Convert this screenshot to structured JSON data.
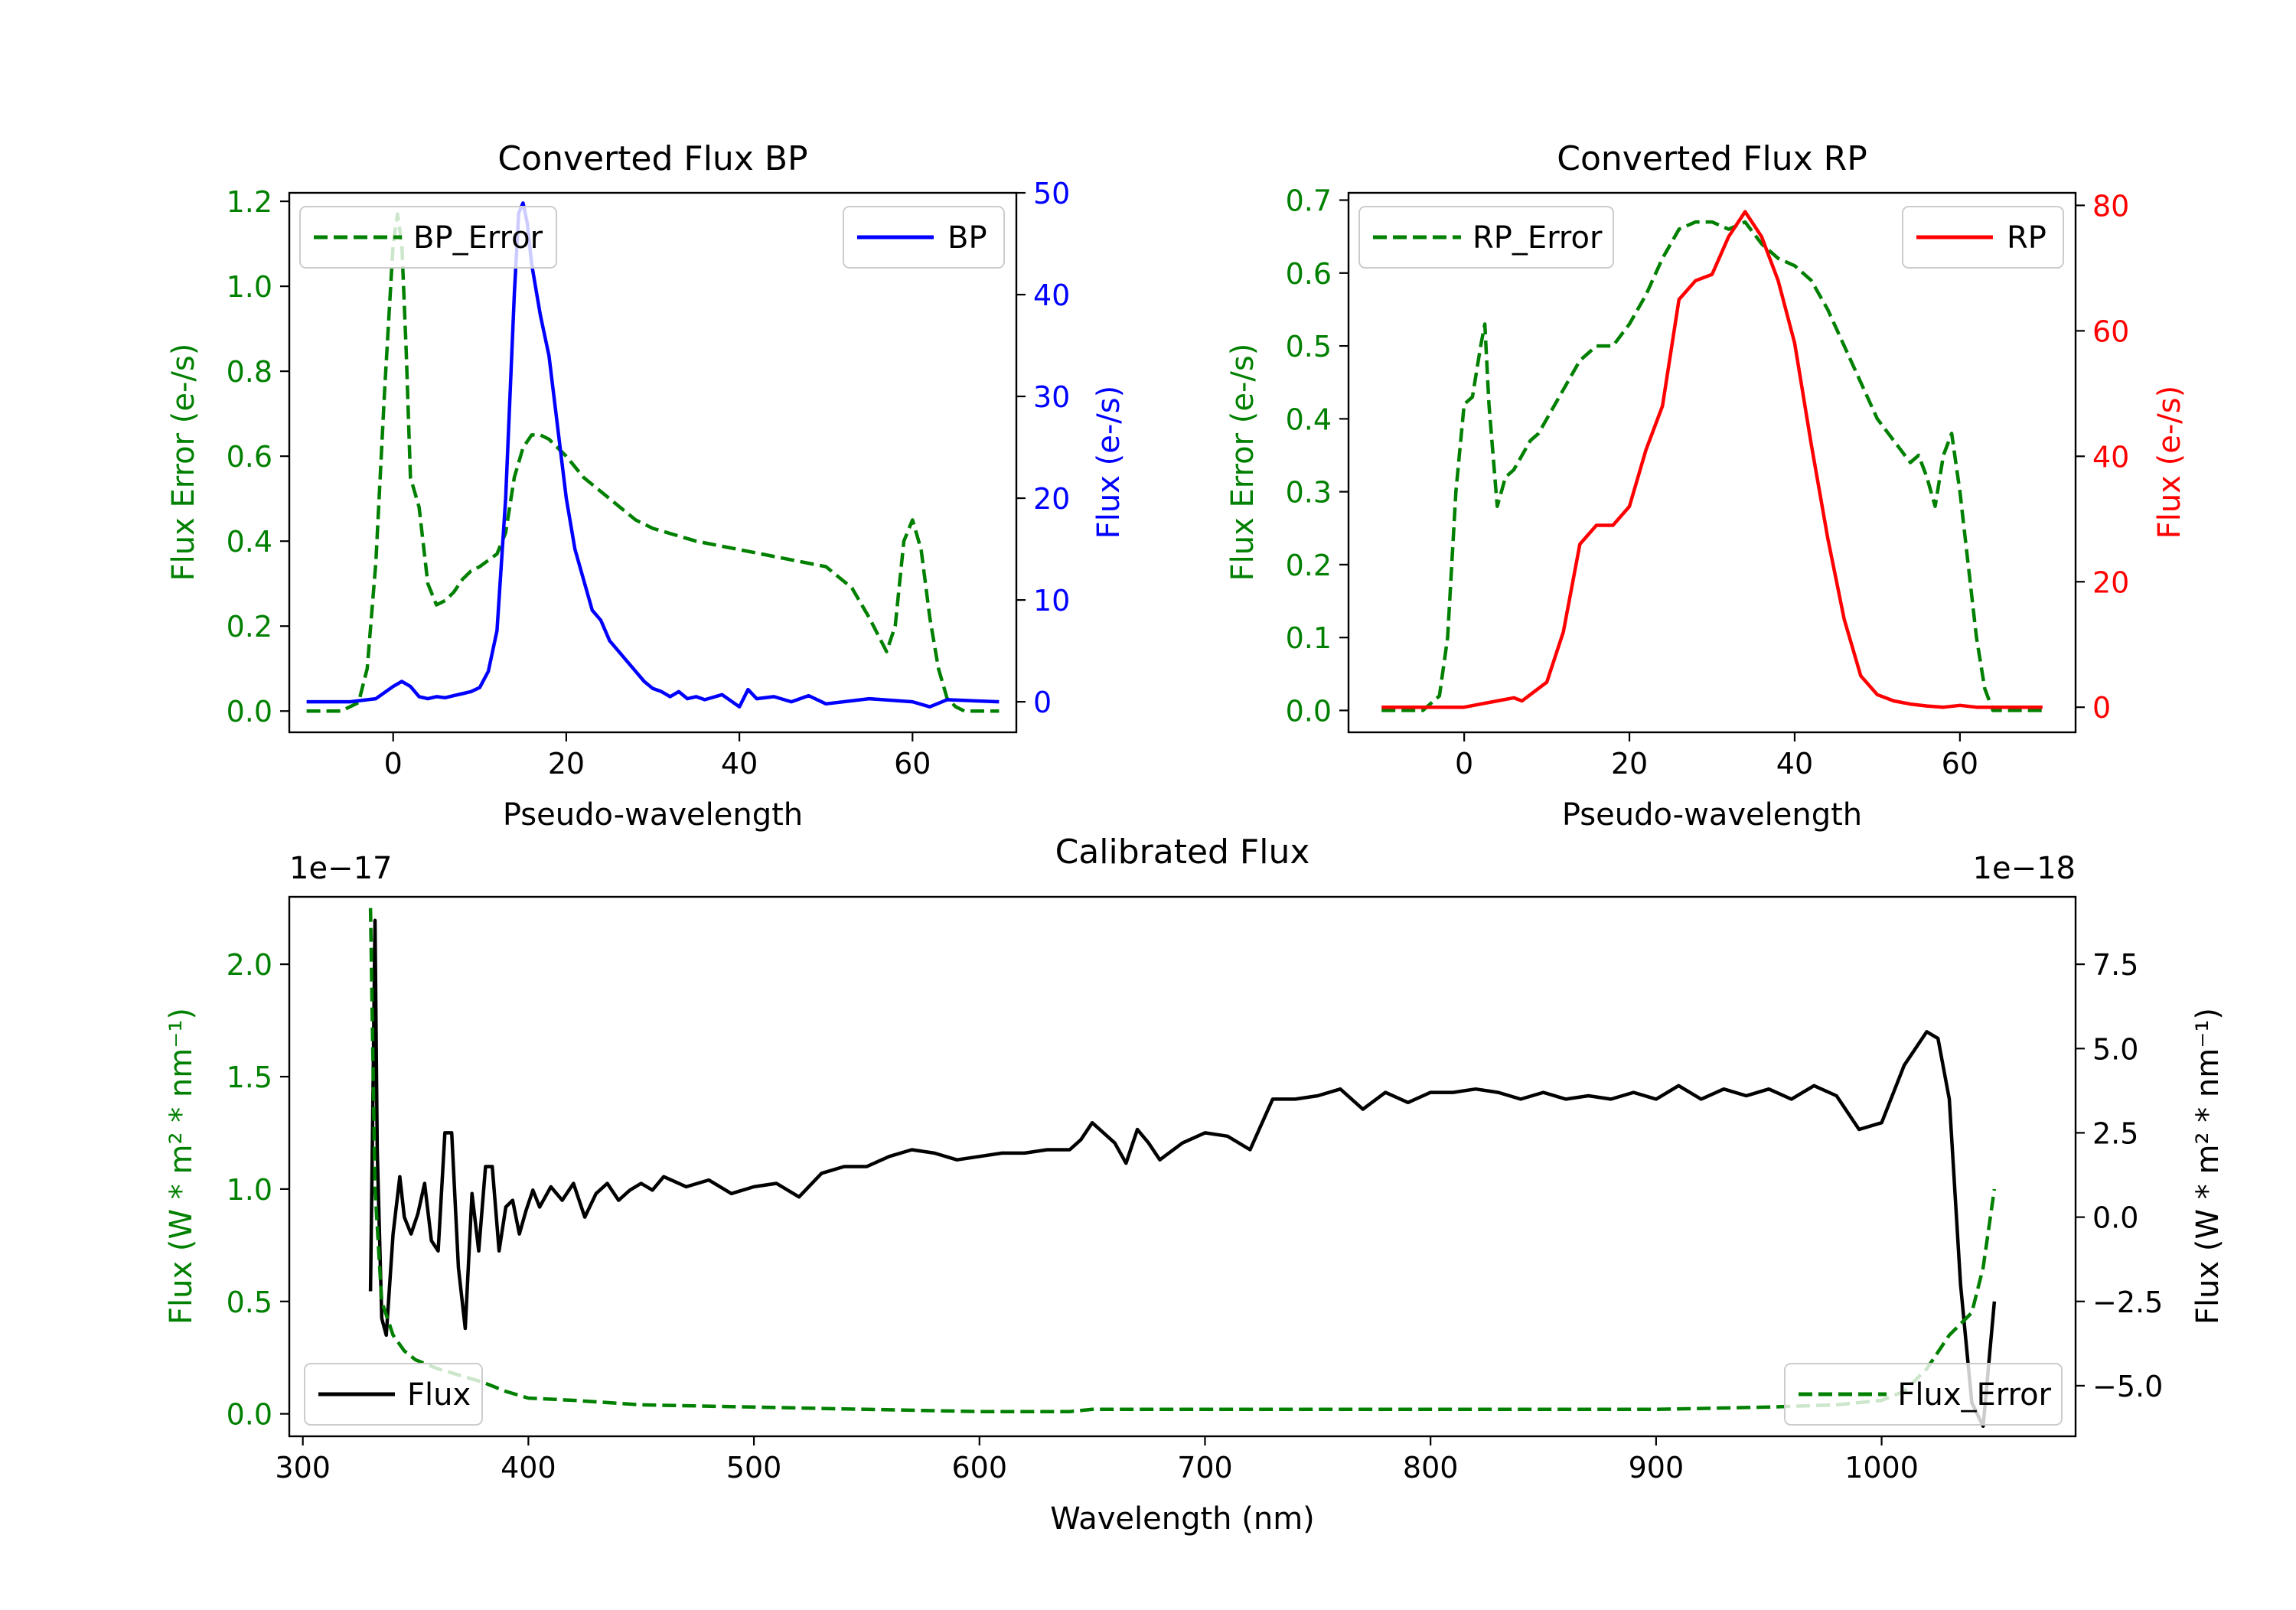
{
  "colors": {
    "error": "#008000",
    "bp": "#0000ff",
    "rp": "#ff0000",
    "flux": "#000000"
  },
  "chart_data": [
    {
      "id": "bp",
      "type": "line",
      "title": "Converted Flux BP",
      "xlabel": "Pseudo-wavelength",
      "xlim": [
        -12,
        72
      ],
      "xticks": [
        0,
        20,
        40,
        60
      ],
      "xtick_labels": [
        "0",
        "20",
        "40",
        "60"
      ],
      "left_axis": {
        "label": "Flux Error (e-/s)",
        "color": "#008000",
        "ylim": [
          -0.05,
          1.22
        ],
        "ticks": [
          0.0,
          0.2,
          0.4,
          0.6,
          0.8,
          1.0,
          1.2
        ],
        "tick_labels": [
          "0.0",
          "0.2",
          "0.4",
          "0.6",
          "0.8",
          "1.0",
          "1.2"
        ]
      },
      "right_axis": {
        "label": "Flux (e-/s)",
        "color": "#0000ff",
        "ylim": [
          -3,
          50
        ],
        "ticks": [
          0,
          10,
          20,
          30,
          40,
          50
        ],
        "tick_labels": [
          "0",
          "10",
          "20",
          "30",
          "40",
          "50"
        ]
      },
      "series": [
        {
          "name": "BP_Error",
          "axis": "left",
          "style": "dashed",
          "color": "#008000",
          "x": [
            -10,
            -6,
            -4,
            -3,
            -2,
            -1,
            0,
            0.5,
            1,
            1.5,
            2,
            3,
            4,
            5,
            6,
            7,
            8,
            9,
            10,
            12,
            13,
            14,
            15,
            16,
            17,
            18,
            19,
            20,
            22,
            25,
            28,
            30,
            35,
            40,
            45,
            50,
            53,
            55,
            57,
            58,
            59,
            60,
            61,
            62,
            63,
            64,
            65,
            66,
            68,
            70
          ],
          "y": [
            0.0,
            0.0,
            0.02,
            0.1,
            0.35,
            0.75,
            1.1,
            1.17,
            1.1,
            0.85,
            0.55,
            0.48,
            0.3,
            0.25,
            0.26,
            0.28,
            0.31,
            0.33,
            0.34,
            0.37,
            0.42,
            0.55,
            0.62,
            0.65,
            0.65,
            0.64,
            0.62,
            0.6,
            0.55,
            0.5,
            0.45,
            0.43,
            0.4,
            0.38,
            0.36,
            0.34,
            0.29,
            0.22,
            0.14,
            0.2,
            0.4,
            0.45,
            0.38,
            0.22,
            0.1,
            0.03,
            0.01,
            0.0,
            0.0,
            0.0
          ]
        },
        {
          "name": "BP",
          "axis": "right",
          "style": "solid",
          "color": "#0000ff",
          "x": [
            -10,
            -5,
            -2,
            0,
            1,
            2,
            3,
            4,
            5,
            6,
            7,
            8,
            9,
            10,
            11,
            12,
            13,
            14,
            14.5,
            15,
            15.5,
            16,
            17,
            18,
            19,
            20,
            21,
            22,
            23,
            24,
            25,
            26,
            27,
            28,
            29,
            30,
            31,
            32,
            33,
            34,
            35,
            36,
            38,
            40,
            41,
            42,
            44,
            46,
            48,
            50,
            55,
            60,
            62,
            64,
            70
          ],
          "y": [
            0,
            0,
            0.3,
            1.5,
            2,
            1.5,
            0.5,
            0.3,
            0.5,
            0.4,
            0.6,
            0.8,
            1,
            1.4,
            3,
            7,
            20,
            40,
            48,
            49,
            47,
            43,
            38,
            34,
            27,
            20,
            15,
            12,
            9,
            8,
            6,
            5,
            4,
            3,
            2,
            1.3,
            1,
            0.5,
            1,
            0.3,
            0.5,
            0.2,
            0.7,
            -0.5,
            1.2,
            0.3,
            0.5,
            0,
            0.6,
            -0.2,
            0.3,
            0,
            -0.5,
            0.2,
            0
          ]
        }
      ],
      "legends": [
        {
          "label": "BP_Error",
          "position": "upper left"
        },
        {
          "label": "BP",
          "position": "upper right"
        }
      ]
    },
    {
      "id": "rp",
      "type": "line",
      "title": "Converted Flux RP",
      "xlabel": "Pseudo-wavelength",
      "xlim": [
        -14,
        74
      ],
      "xticks": [
        0,
        20,
        40,
        60
      ],
      "xtick_labels": [
        "0",
        "20",
        "40",
        "60"
      ],
      "left_axis": {
        "label": "Flux Error (e-/s)",
        "color": "#008000",
        "ylim": [
          -0.03,
          0.71
        ],
        "ticks": [
          0.0,
          0.1,
          0.2,
          0.3,
          0.4,
          0.5,
          0.6,
          0.7
        ],
        "tick_labels": [
          "0.0",
          "0.1",
          "0.2",
          "0.3",
          "0.4",
          "0.5",
          "0.6",
          "0.7"
        ]
      },
      "right_axis": {
        "label": "Flux (e-/s)",
        "color": "#ff0000",
        "ylim": [
          -4,
          82
        ],
        "ticks": [
          0,
          20,
          40,
          60,
          80
        ],
        "tick_labels": [
          "0",
          "20",
          "40",
          "60",
          "80"
        ]
      },
      "series": [
        {
          "name": "RP_Error",
          "axis": "left",
          "style": "dashed",
          "color": "#008000",
          "x": [
            -10,
            -5,
            -3,
            -2,
            -1,
            0,
            1,
            2,
            2.5,
            3,
            4,
            5,
            6,
            7,
            8,
            9,
            10,
            12,
            14,
            16,
            18,
            20,
            22,
            24,
            26,
            28,
            30,
            32,
            34,
            36,
            38,
            40,
            42,
            44,
            46,
            48,
            50,
            52,
            54,
            55,
            56,
            57,
            58,
            59,
            60,
            61,
            62,
            63,
            64,
            66,
            70
          ],
          "y": [
            0.0,
            0.0,
            0.02,
            0.1,
            0.3,
            0.42,
            0.43,
            0.5,
            0.53,
            0.42,
            0.28,
            0.32,
            0.33,
            0.35,
            0.37,
            0.38,
            0.4,
            0.44,
            0.48,
            0.5,
            0.5,
            0.53,
            0.57,
            0.62,
            0.66,
            0.67,
            0.67,
            0.66,
            0.67,
            0.64,
            0.62,
            0.61,
            0.59,
            0.55,
            0.5,
            0.45,
            0.4,
            0.37,
            0.34,
            0.35,
            0.32,
            0.28,
            0.35,
            0.38,
            0.3,
            0.2,
            0.1,
            0.03,
            0.0,
            0.0,
            0.0
          ]
        },
        {
          "name": "RP",
          "axis": "right",
          "style": "solid",
          "color": "#ff0000",
          "x": [
            -10,
            -5,
            0,
            2,
            4,
            6,
            7,
            8,
            10,
            12,
            14,
            16,
            18,
            20,
            22,
            24,
            26,
            28,
            30,
            32,
            34,
            36,
            38,
            40,
            42,
            44,
            46,
            48,
            50,
            52,
            54,
            56,
            58,
            60,
            62,
            70
          ],
          "y": [
            0,
            0,
            0,
            0.5,
            1,
            1.5,
            1,
            2,
            4,
            12,
            26,
            29,
            29,
            32,
            41,
            48,
            65,
            68,
            69,
            75,
            79,
            75,
            68,
            58,
            42,
            27,
            14,
            5,
            2,
            1,
            0.5,
            0.2,
            0,
            0.3,
            0,
            0
          ]
        }
      ],
      "legends": [
        {
          "label": "RP_Error",
          "position": "upper left"
        },
        {
          "label": "RP",
          "position": "upper right"
        }
      ]
    },
    {
      "id": "calibrated",
      "type": "line",
      "title": "Calibrated Flux",
      "xlabel": "Wavelength (nm)",
      "xlim": [
        294,
        1086
      ],
      "xticks": [
        300,
        400,
        500,
        600,
        700,
        800,
        900,
        1000
      ],
      "xtick_labels": [
        "300",
        "400",
        "500",
        "600",
        "700",
        "800",
        "900",
        "1000"
      ],
      "left_axis": {
        "label": "Flux (W * m² * nm⁻¹)",
        "color": "#008000",
        "offset_text": "1e−17",
        "ylim": [
          -0.1,
          2.3
        ],
        "ticks": [
          0.0,
          0.5,
          1.0,
          1.5,
          2.0
        ],
        "tick_labels": [
          "0.0",
          "0.5",
          "1.0",
          "1.5",
          "2.0"
        ]
      },
      "right_axis": {
        "label": "Flux (W * m² * nm⁻¹)",
        "color": "#000000",
        "offset_text": "1e−18",
        "ylim": [
          -6.5,
          9.5
        ],
        "ticks": [
          -5.0,
          -2.5,
          0.0,
          2.5,
          5.0,
          7.5
        ],
        "tick_labels": [
          "−5.0",
          "−2.5",
          "0.0",
          "2.5",
          "5.0",
          "7.5"
        ]
      },
      "series": [
        {
          "name": "Flux",
          "axis": "right",
          "style": "solid",
          "color": "#000000",
          "x": [
            330,
            331,
            332,
            333,
            335,
            337,
            340,
            343,
            345,
            348,
            351,
            354,
            357,
            360,
            363,
            366,
            369,
            372,
            375,
            378,
            381,
            384,
            387,
            390,
            393,
            396,
            399,
            402,
            405,
            410,
            415,
            420,
            425,
            430,
            435,
            440,
            445,
            450,
            455,
            460,
            470,
            480,
            490,
            500,
            510,
            520,
            530,
            540,
            550,
            560,
            570,
            580,
            590,
            600,
            610,
            620,
            630,
            640,
            645,
            650,
            655,
            660,
            665,
            670,
            675,
            680,
            690,
            700,
            710,
            720,
            730,
            740,
            750,
            760,
            770,
            780,
            790,
            800,
            810,
            820,
            830,
            840,
            850,
            860,
            870,
            880,
            890,
            900,
            910,
            920,
            930,
            940,
            950,
            960,
            970,
            980,
            990,
            1000,
            1010,
            1020,
            1025,
            1030,
            1035,
            1040,
            1045,
            1050
          ],
          "y": [
            -2.2,
            3,
            8.8,
            2,
            -3,
            -3.5,
            -0.5,
            1.2,
            0,
            -0.5,
            0.1,
            1.0,
            -0.7,
            -1.0,
            2.5,
            2.5,
            -1.5,
            -3.3,
            0.7,
            -1.0,
            1.5,
            1.5,
            -1.0,
            0.3,
            0.5,
            -0.5,
            0.2,
            0.8,
            0.3,
            0.9,
            0.5,
            1.0,
            0.0,
            0.7,
            1.0,
            0.5,
            0.8,
            1.0,
            0.8,
            1.2,
            0.9,
            1.1,
            0.7,
            0.9,
            1.0,
            0.6,
            1.3,
            1.5,
            1.5,
            1.8,
            2.0,
            1.9,
            1.7,
            1.8,
            1.9,
            1.9,
            2.0,
            2.0,
            2.3,
            2.8,
            2.5,
            2.2,
            1.6,
            2.6,
            2.2,
            1.7,
            2.2,
            2.5,
            2.4,
            2.0,
            3.5,
            3.5,
            3.6,
            3.8,
            3.2,
            3.7,
            3.4,
            3.7,
            3.7,
            3.8,
            3.7,
            3.5,
            3.7,
            3.5,
            3.6,
            3.5,
            3.7,
            3.5,
            3.9,
            3.5,
            3.8,
            3.6,
            3.8,
            3.5,
            3.9,
            3.6,
            2.6,
            2.8,
            4.5,
            5.5,
            5.3,
            3.5,
            -2.0,
            -5.5,
            -6.2,
            -2.5
          ]
        },
        {
          "name": "Flux_Error",
          "axis": "left",
          "style": "dashed",
          "color": "#008000",
          "x": [
            330,
            332,
            335,
            340,
            345,
            350,
            360,
            370,
            380,
            390,
            400,
            420,
            450,
            500,
            550,
            600,
            640,
            650,
            700,
            750,
            800,
            850,
            900,
            950,
            980,
            1000,
            1010,
            1020,
            1030,
            1040,
            1045,
            1050
          ],
          "y": [
            2.25,
            1.0,
            0.5,
            0.35,
            0.28,
            0.24,
            0.2,
            0.17,
            0.14,
            0.1,
            0.07,
            0.06,
            0.04,
            0.03,
            0.02,
            0.01,
            0.01,
            0.02,
            0.02,
            0.02,
            0.02,
            0.02,
            0.02,
            0.03,
            0.04,
            0.06,
            0.1,
            0.2,
            0.35,
            0.45,
            0.65,
            1.0
          ]
        }
      ],
      "legends": [
        {
          "label": "Flux",
          "position": "lower left"
        },
        {
          "label": "Flux_Error",
          "position": "lower right"
        }
      ]
    }
  ]
}
